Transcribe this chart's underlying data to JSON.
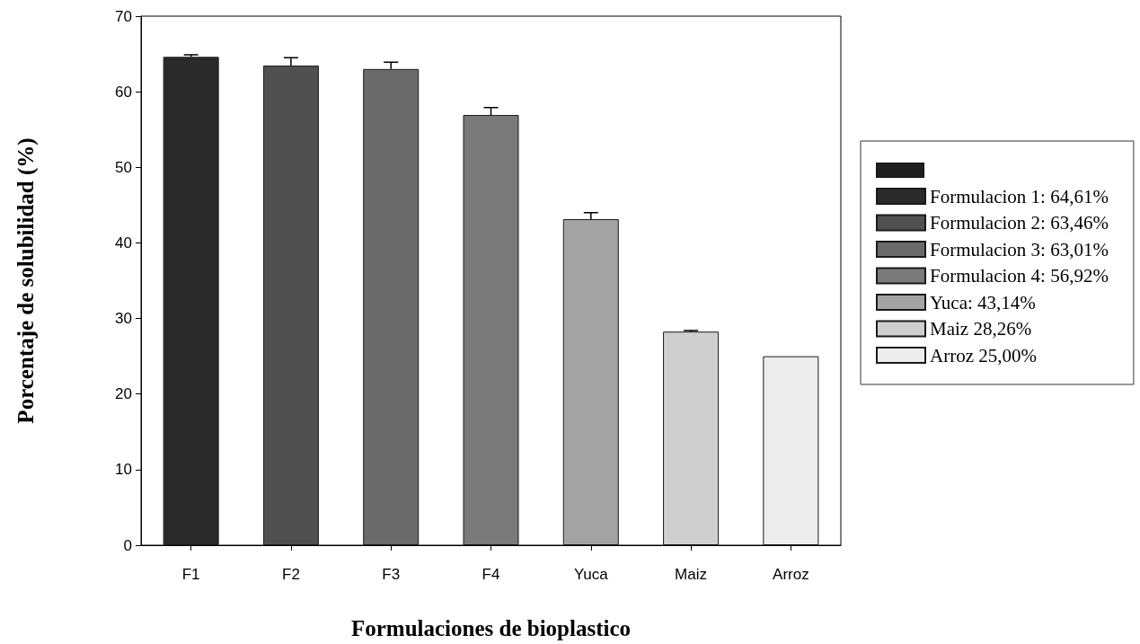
{
  "chart_data": {
    "type": "bar",
    "xlabel": "Formulaciones de bioplastico",
    "ylabel": "Porcentaje de solubilidad (%)",
    "categories": [
      "F1",
      "F2",
      "F3",
      "F4",
      "Yuca",
      "Maiz",
      "Arroz"
    ],
    "ylim": [
      0,
      70
    ],
    "yticks": [
      0,
      10,
      20,
      30,
      40,
      50,
      60,
      70
    ],
    "grid": false,
    "legend": "right",
    "series": [
      {
        "name": "Formulacion 1: 64,61%",
        "color": "#2a2a2a",
        "values": [
          64.61,
          null,
          null,
          null,
          null,
          null,
          null
        ],
        "errors": [
          [
            64.61,
            64.9
          ],
          null,
          null,
          null,
          null,
          null,
          null
        ]
      },
      {
        "name": "Formulacion 2: 63,46%",
        "color": "#505050",
        "values": [
          null,
          63.46,
          null,
          null,
          null,
          null,
          null
        ],
        "errors": [
          null,
          [
            63.46,
            64.5
          ],
          null,
          null,
          null,
          null,
          null
        ]
      },
      {
        "name": "Formulacion 3: 63,01%",
        "color": "#6a6a6a",
        "values": [
          null,
          null,
          63.01,
          null,
          null,
          null,
          null
        ],
        "errors": [
          null,
          null,
          [
            63.01,
            63.9
          ],
          null,
          null,
          null,
          null
        ]
      },
      {
        "name": "Formulacion 4: 56,92%",
        "color": "#7a7a7a",
        "values": [
          null,
          null,
          null,
          56.92,
          null,
          null,
          null
        ],
        "errors": [
          null,
          null,
          null,
          [
            56.92,
            57.9
          ],
          null,
          null,
          null
        ]
      },
      {
        "name": "Yuca: 43,14%",
        "color": "#a3a3a3",
        "values": [
          null,
          null,
          null,
          null,
          43.14,
          null,
          null
        ],
        "errors": [
          null,
          null,
          null,
          null,
          [
            43.14,
            44.0
          ],
          null,
          null
        ]
      },
      {
        "name": "Maiz 28,26%",
        "color": "#cfcfcf",
        "values": [
          null,
          null,
          null,
          null,
          null,
          28.26,
          null
        ],
        "errors": [
          null,
          null,
          null,
          null,
          null,
          [
            28.26,
            28.4
          ],
          null
        ]
      },
      {
        "name": "Arroz 25,00%",
        "color": "#ececec",
        "values": [
          null,
          null,
          null,
          null,
          null,
          null,
          25.0
        ],
        "errors": [
          null,
          null,
          null,
          null,
          null,
          null,
          null
        ]
      }
    ]
  }
}
